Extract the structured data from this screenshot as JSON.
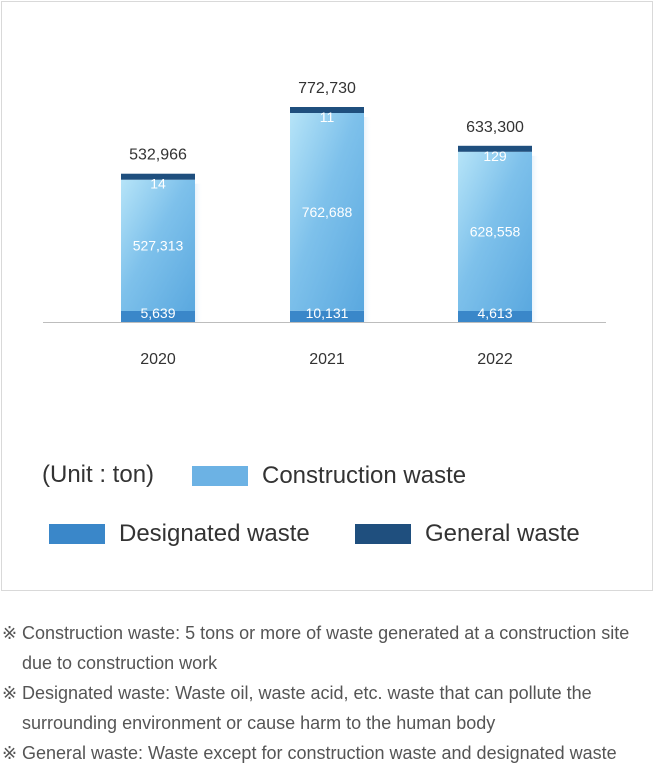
{
  "chart_data": {
    "type": "bar",
    "stacked": true,
    "categories": [
      "2020",
      "2021",
      "2022"
    ],
    "series": [
      {
        "name": "Designated waste",
        "values": [
          5639,
          10131,
          4613
        ],
        "color": "#3a87c9"
      },
      {
        "name": "Construction waste",
        "values": [
          527313,
          762688,
          628558
        ],
        "color": "#6cb2e4"
      },
      {
        "name": "General waste",
        "values": [
          14,
          11,
          129
        ],
        "color": "#1f4f7e"
      }
    ],
    "segment_labels": [
      [
        "5,639",
        "527,313",
        "14"
      ],
      [
        "10,131",
        "762,688",
        "11"
      ],
      [
        "4,613",
        "628,558",
        "129"
      ]
    ],
    "totals": [
      532966,
      772730,
      633300
    ],
    "total_labels": [
      "532,966",
      "772,730",
      "633,300"
    ],
    "title": "",
    "xlabel": "",
    "ylabel": "",
    "grid": false
  },
  "unit_label": "(Unit : ton)",
  "legend": [
    {
      "label": "Construction waste",
      "color": "#6cb2e4"
    },
    {
      "label": "Designated waste",
      "color": "#3a87c9"
    },
    {
      "label": "General waste",
      "color": "#1f4f7e"
    }
  ],
  "notes": [
    {
      "mark": "※",
      "text": "Construction waste: 5 tons or more of waste generated at a construction site due to construction work"
    },
    {
      "mark": "※",
      "text": "Designated waste:  Waste oil, waste acid, etc. waste that can pollute the surrounding environment or cause harm to the human body"
    },
    {
      "mark": "※",
      "text": "General waste: Waste except for construction waste and designated waste"
    }
  ]
}
